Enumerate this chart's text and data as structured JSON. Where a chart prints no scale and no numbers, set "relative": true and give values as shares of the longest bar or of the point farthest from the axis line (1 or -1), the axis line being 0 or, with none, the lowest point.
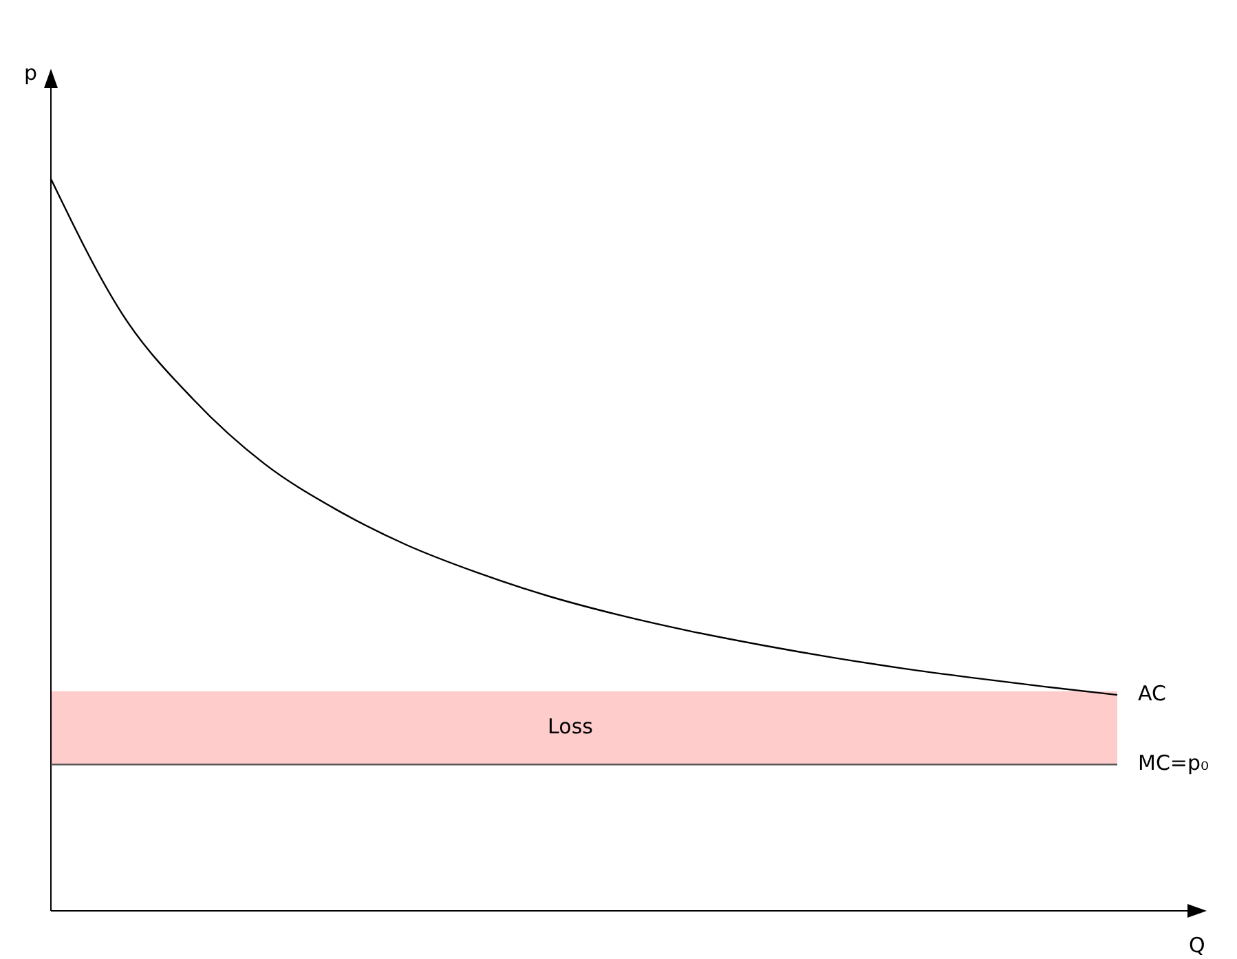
{
  "chart_data": {
    "type": "line",
    "relative": true,
    "xlabel": "Q",
    "ylabel": "p",
    "categories": [
      null,
      null,
      null,
      null,
      null,
      null,
      null,
      null,
      null,
      null,
      null,
      null,
      null,
      null,
      null,
      null
    ],
    "series": [
      {
        "name": "AC",
        "color": "#000000",
        "values": [
          1.0,
          0.816,
          0.699,
          0.611,
          0.549,
          0.5,
          0.462,
          0.43,
          0.404,
          0.382,
          0.363,
          0.346,
          0.331,
          0.318,
          0.306,
          0.295
        ]
      },
      {
        "name": "MC=p₀",
        "color": "#555555",
        "values": [
          0.2,
          0.2,
          0.2,
          0.2,
          0.2,
          0.2,
          0.2,
          0.2,
          0.2,
          0.2,
          0.2,
          0.2,
          0.2,
          0.2,
          0.2,
          0.2
        ]
      }
    ],
    "bands": [
      {
        "axis": "y",
        "from": 0.2,
        "to": 0.3,
        "label": "Loss",
        "color": "#ffcccc"
      }
    ]
  }
}
